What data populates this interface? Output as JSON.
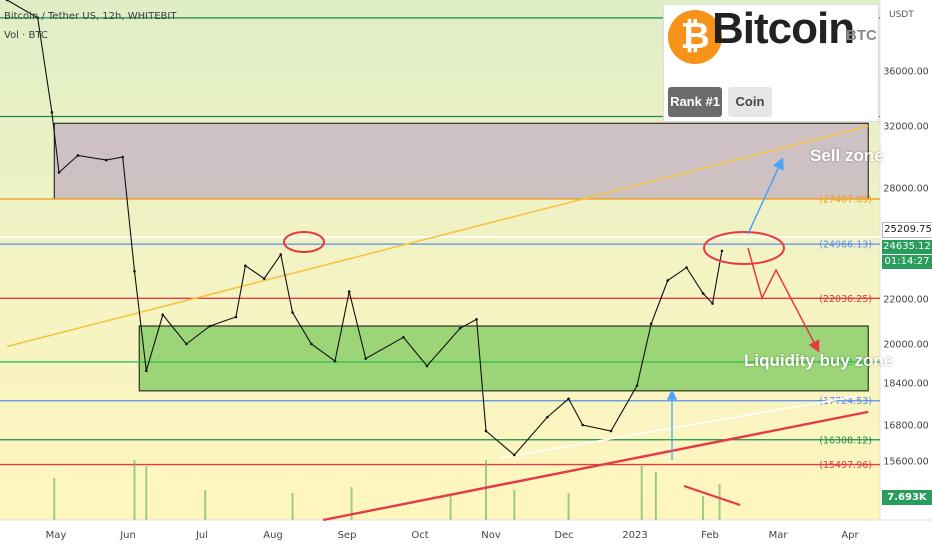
{
  "header": {
    "symbol_line": "Bitcoin / Tether US, 12h, WHITEBIT",
    "volume_line": "Vol · BTC"
  },
  "logo": {
    "name": "Bitcoin",
    "ticker": "BTC",
    "rank_badge": "Rank #1",
    "type_badge": "Coin"
  },
  "annotations": {
    "sell_zone": "Sell zone",
    "buy_zone": "Liquidity buy zone"
  },
  "price_scale": {
    "currency": "USDT",
    "current_price": "24635.12",
    "countdown": "01:14:27",
    "line_price": "25209.75",
    "volume_value": "7.693K"
  },
  "colors": {
    "background_top": "#e6f0c8",
    "background_bottom": "#fff7c4",
    "sell_zone_fill": "#c8b8c2",
    "buy_zone_fill": "#8ccf6a",
    "support_trend": "#e53945",
    "resistance_trend": "#f6c344",
    "up_arrow": "#4da3f7",
    "down_arrow": "#e53945",
    "current_price": "#2a9d5c"
  },
  "chart_data": {
    "type": "line",
    "x_tick_labels": [
      "May",
      "Jun",
      "Jul",
      "Aug",
      "Sep",
      "Oct",
      "Nov",
      "Dec",
      "2023",
      "Feb",
      "Mar",
      "Apr"
    ],
    "y_tick_labels": [
      "36000.00",
      "32000.00",
      "28000.00",
      "22000.00",
      "20000.00",
      "18400.00",
      "16800.00",
      "15600.00"
    ],
    "y_ticks": [
      36000,
      32000,
      28000,
      22000,
      20000,
      18400,
      16800,
      15600
    ],
    "horizontal_levels": [
      {
        "label": "38992.44",
        "value": 38992.44,
        "color": "#1d8c4b"
      },
      {
        "label": "32690.51",
        "value": 32690.51,
        "color": "#1d8c4b"
      },
      {
        "label": "27407.09",
        "value": 27407.09,
        "color": "#f39c12"
      },
      {
        "label": "24966.13",
        "value": 24966.13,
        "color": "#5b8def"
      },
      {
        "label": "22036.25",
        "value": 22036.25,
        "color": "#e53945"
      },
      {
        "label": "19263.96",
        "value": 19263.96,
        "color": "#31c24d"
      },
      {
        "label": "17724.53",
        "value": 17724.53,
        "color": "#5b8def"
      },
      {
        "label": "16308.12",
        "value": 16308.12,
        "color": "#1d8c4b"
      },
      {
        "label": "15497.96",
        "value": 15497.96,
        "color": "#e53945"
      }
    ],
    "price_series": [
      {
        "x": "2022-04-20",
        "y": 41200
      },
      {
        "x": "2022-05-03",
        "y": 39000
      },
      {
        "x": "2022-05-09",
        "y": 33000
      },
      {
        "x": "2022-05-12",
        "y": 29000
      },
      {
        "x": "2022-05-20",
        "y": 30100
      },
      {
        "x": "2022-06-01",
        "y": 29800
      },
      {
        "x": "2022-06-08",
        "y": 30000
      },
      {
        "x": "2022-06-13",
        "y": 23500
      },
      {
        "x": "2022-06-18",
        "y": 18900
      },
      {
        "x": "2022-06-25",
        "y": 21300
      },
      {
        "x": "2022-07-05",
        "y": 20000
      },
      {
        "x": "2022-07-15",
        "y": 20800
      },
      {
        "x": "2022-07-26",
        "y": 21200
      },
      {
        "x": "2022-07-30",
        "y": 23800
      },
      {
        "x": "2022-08-07",
        "y": 23100
      },
      {
        "x": "2022-08-14",
        "y": 24400
      },
      {
        "x": "2022-08-19",
        "y": 21400
      },
      {
        "x": "2022-08-27",
        "y": 20000
      },
      {
        "x": "2022-09-06",
        "y": 19300
      },
      {
        "x": "2022-09-12",
        "y": 22400
      },
      {
        "x": "2022-09-19",
        "y": 19400
      },
      {
        "x": "2022-10-05",
        "y": 20300
      },
      {
        "x": "2022-10-15",
        "y": 19100
      },
      {
        "x": "2022-10-29",
        "y": 20700
      },
      {
        "x": "2022-11-05",
        "y": 21100
      },
      {
        "x": "2022-11-09",
        "y": 16600
      },
      {
        "x": "2022-11-21",
        "y": 15800
      },
      {
        "x": "2022-12-05",
        "y": 17100
      },
      {
        "x": "2022-12-14",
        "y": 17800
      },
      {
        "x": "2022-12-20",
        "y": 16800
      },
      {
        "x": "2023-01-01",
        "y": 16600
      },
      {
        "x": "2023-01-12",
        "y": 18300
      },
      {
        "x": "2023-01-18",
        "y": 20900
      },
      {
        "x": "2023-01-25",
        "y": 23000
      },
      {
        "x": "2023-02-02",
        "y": 23700
      },
      {
        "x": "2023-02-09",
        "y": 22300
      },
      {
        "x": "2023-02-13",
        "y": 21800
      },
      {
        "x": "2023-02-17",
        "y": 24600
      }
    ],
    "volume_series": [
      {
        "x": "2022-05-10",
        "y": 0.7
      },
      {
        "x": "2022-06-13",
        "y": 1.0
      },
      {
        "x": "2022-06-18",
        "y": 0.9
      },
      {
        "x": "2022-07-13",
        "y": 0.5
      },
      {
        "x": "2022-08-19",
        "y": 0.45
      },
      {
        "x": "2022-09-13",
        "y": 0.55
      },
      {
        "x": "2022-10-25",
        "y": 0.4
      },
      {
        "x": "2022-11-09",
        "y": 1.0
      },
      {
        "x": "2022-11-21",
        "y": 0.5
      },
      {
        "x": "2022-12-14",
        "y": 0.45
      },
      {
        "x": "2023-01-14",
        "y": 0.9
      },
      {
        "x": "2023-01-20",
        "y": 0.8
      },
      {
        "x": "2023-02-09",
        "y": 0.4
      },
      {
        "x": "2023-02-16",
        "y": 0.6
      }
    ],
    "zones": {
      "sell": {
        "from_price": 27407.09,
        "to_price": 32200,
        "x_from": "2022-05-10",
        "x_to": "2023-04-20"
      },
      "buy": {
        "from_price": 18100,
        "to_price": 20800,
        "x_from": "2022-06-15",
        "x_to": "2023-04-20"
      }
    },
    "trendlines": [
      {
        "name": "resistance",
        "from": {
          "x": "2022-04-20",
          "y": 19900
        },
        "to": {
          "x": "2023-04-20",
          "y": 32000
        }
      },
      {
        "name": "support",
        "from": {
          "x": "2022-09-01",
          "y": 13500
        },
        "to": {
          "x": "2023-04-20",
          "y": 17300
        }
      },
      {
        "name": "inner-support",
        "from": {
          "x": "2022-11-15",
          "y": 15700
        },
        "to": {
          "x": "2023-04-15",
          "y": 17900
        }
      }
    ],
    "ylim": [
      13900,
      40000
    ],
    "xlim": [
      "2022-04-17",
      "2023-04-25"
    ],
    "grid": false,
    "xlabel": "",
    "ylabel": ""
  }
}
